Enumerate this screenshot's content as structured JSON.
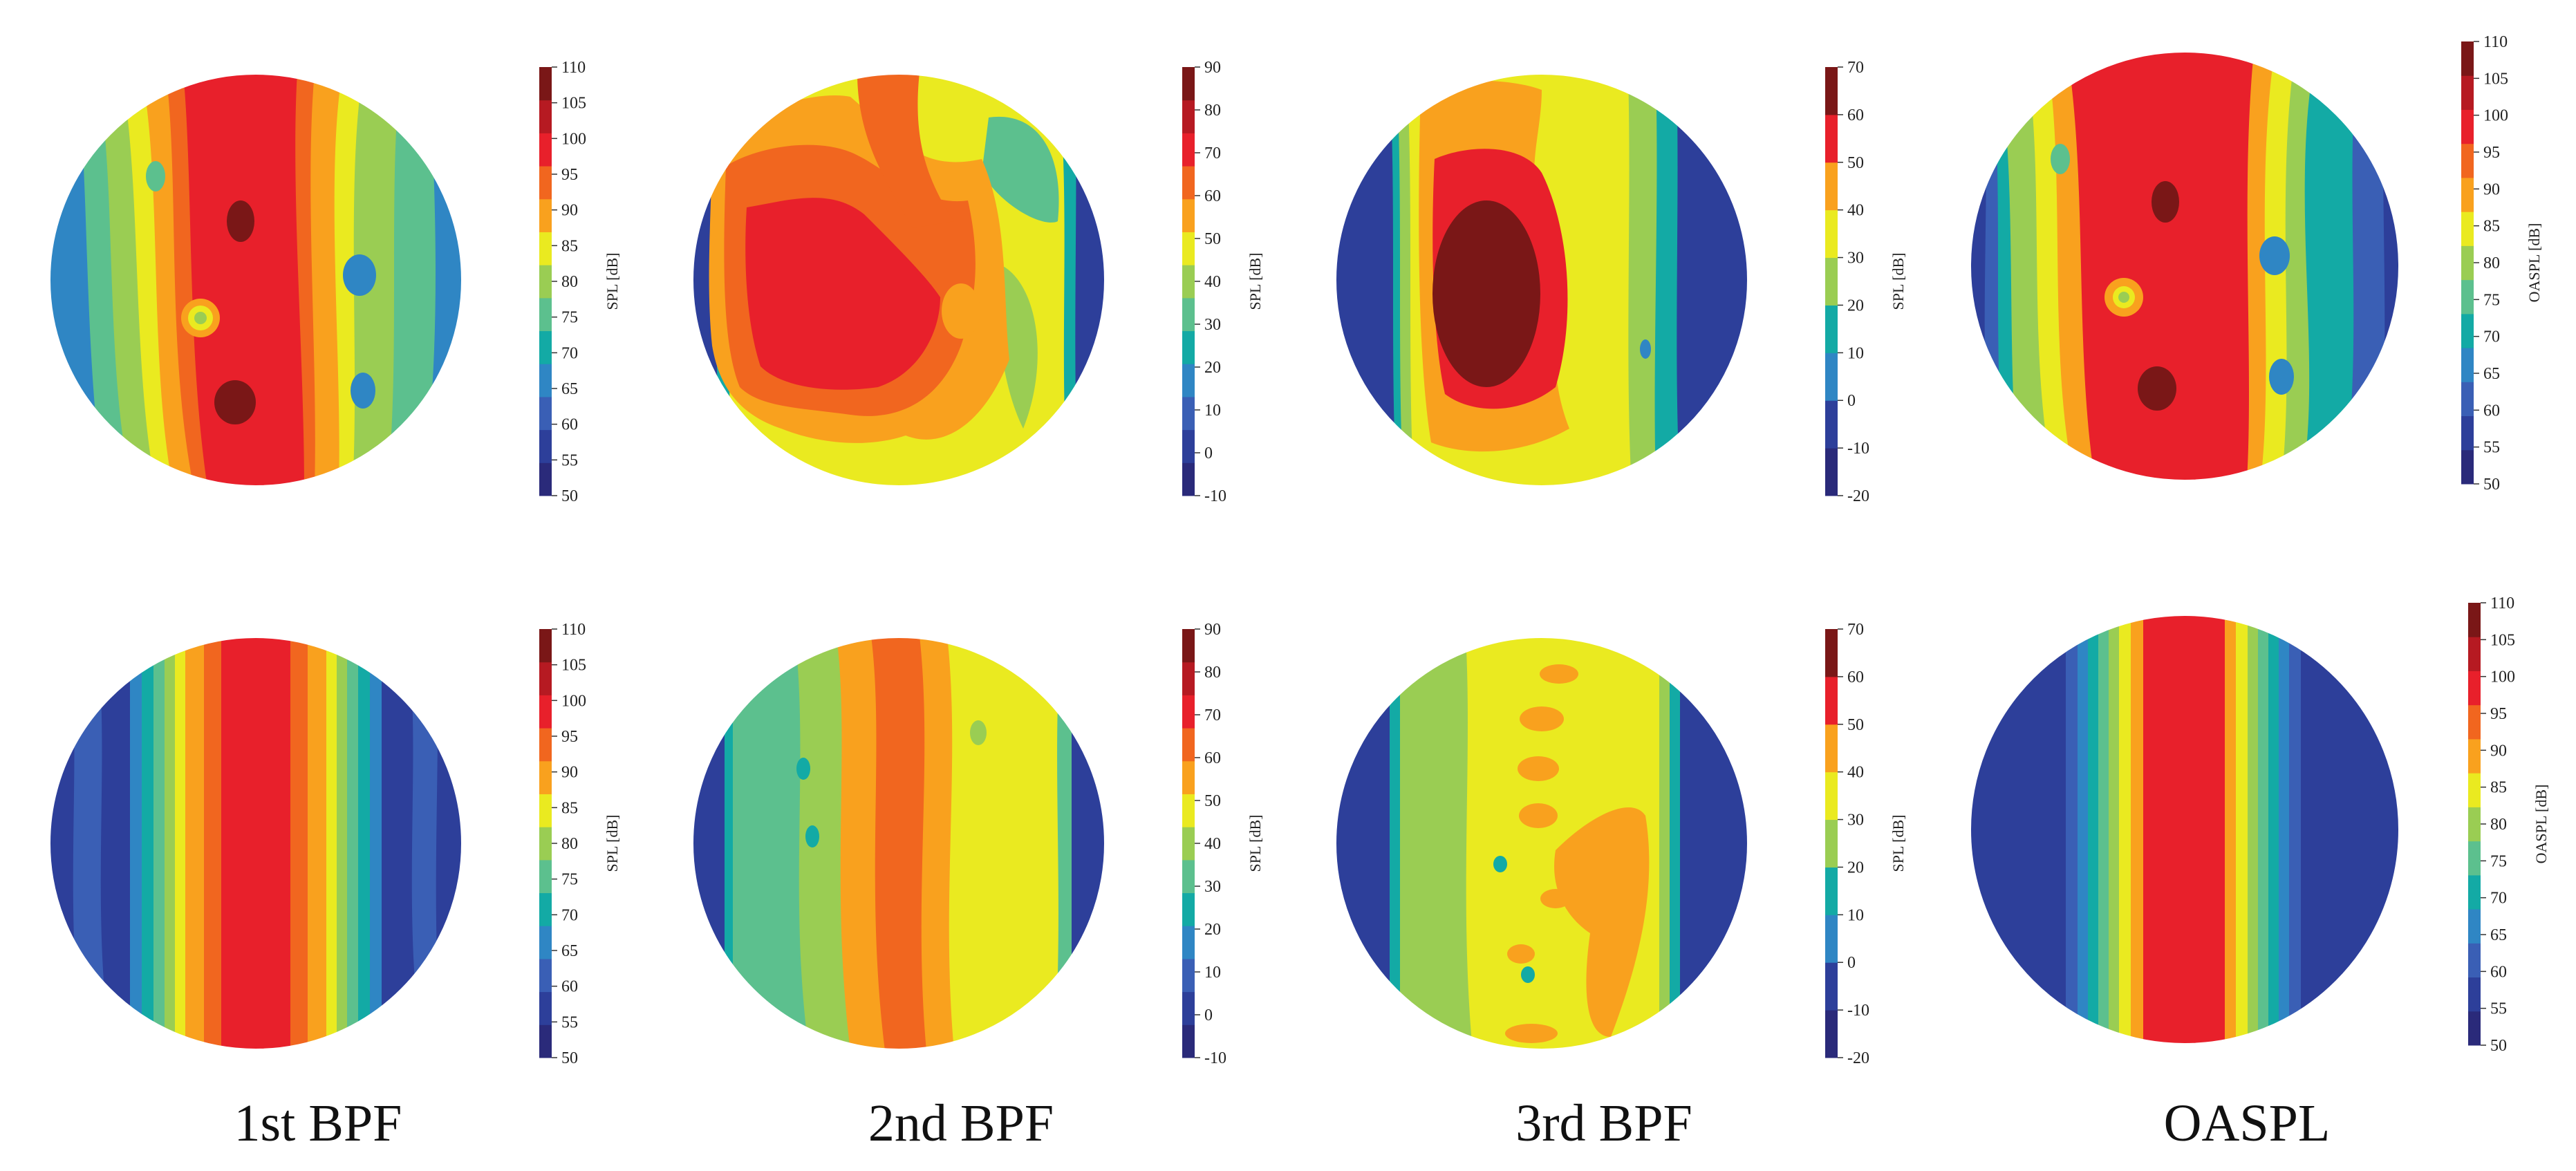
{
  "figure": {
    "captions": [
      "1st BPF",
      "2nd BPF",
      "3rd BPF",
      "OASPL"
    ]
  },
  "palette": {
    "colorbar_13": [
      "#2a2a7a",
      "#2d3f9a",
      "#3a5fb5",
      "#2f86c4",
      "#13aaa5",
      "#5cc08e",
      "#9acd53",
      "#eaea20",
      "#f9a11e",
      "#f1661f",
      "#e8202b",
      "#b61a22",
      "#7a1717"
    ],
    "colorbar_9": [
      "#2a2a7a",
      "#2d3f9a",
      "#2f86c4",
      "#13aaa5",
      "#9acd53",
      "#eaea20",
      "#f9a11e",
      "#e8202b",
      "#7a1717"
    ]
  },
  "colorbars": {
    "bpf1": {
      "label": "SPL [dB]",
      "min": 50,
      "max": 110,
      "ticks": [
        "110",
        "105",
        "100",
        "95",
        "90",
        "85",
        "80",
        "75",
        "70",
        "65",
        "60",
        "55",
        "50"
      ]
    },
    "bpf2": {
      "label": "SPL [dB]",
      "min": -10,
      "max": 90,
      "ticks": [
        "90",
        "80",
        "70",
        "60",
        "50",
        "40",
        "30",
        "20",
        "10",
        "0",
        "-10"
      ]
    },
    "bpf3": {
      "label": "SPL [dB]",
      "min": -20,
      "max": 70,
      "ticks": [
        "70",
        "60",
        "50",
        "40",
        "30",
        "20",
        "10",
        "0",
        "-10",
        "-20"
      ]
    },
    "oaspl": {
      "label": "OASPL [dB]",
      "min": 50,
      "max": 110,
      "ticks": [
        "110",
        "105",
        "100",
        "95",
        "90",
        "85",
        "80",
        "75",
        "70",
        "65",
        "60",
        "55",
        "50"
      ]
    }
  },
  "chart_data": [
    {
      "type": "heatmap",
      "panel": "top-left",
      "field": "SPL 1st BPF",
      "colorbar": "bpf1",
      "unit": "dB",
      "range": [
        50,
        110
      ]
    },
    {
      "type": "heatmap",
      "panel": "top-second",
      "field": "SPL 2nd BPF",
      "colorbar": "bpf2",
      "unit": "dB",
      "range": [
        -10,
        90
      ]
    },
    {
      "type": "heatmap",
      "panel": "top-third",
      "field": "SPL 3rd BPF",
      "colorbar": "bpf3",
      "unit": "dB",
      "range": [
        -20,
        70
      ]
    },
    {
      "type": "heatmap",
      "panel": "top-right",
      "field": "OASPL",
      "colorbar": "oaspl",
      "unit": "dB",
      "range": [
        50,
        110
      ]
    },
    {
      "type": "heatmap",
      "panel": "bottom-left",
      "field": "SPL 1st BPF",
      "colorbar": "bpf1",
      "unit": "dB",
      "range": [
        50,
        110
      ]
    },
    {
      "type": "heatmap",
      "panel": "bottom-second",
      "field": "SPL 2nd BPF",
      "colorbar": "bpf2",
      "unit": "dB",
      "range": [
        -10,
        90
      ]
    },
    {
      "type": "heatmap",
      "panel": "bottom-third",
      "field": "SPL 3rd BPF",
      "colorbar": "bpf3",
      "unit": "dB",
      "range": [
        -20,
        70
      ]
    },
    {
      "type": "heatmap",
      "panel": "bottom-right",
      "field": "OASPL",
      "colorbar": "oaspl",
      "unit": "dB",
      "range": [
        50,
        110
      ]
    }
  ]
}
